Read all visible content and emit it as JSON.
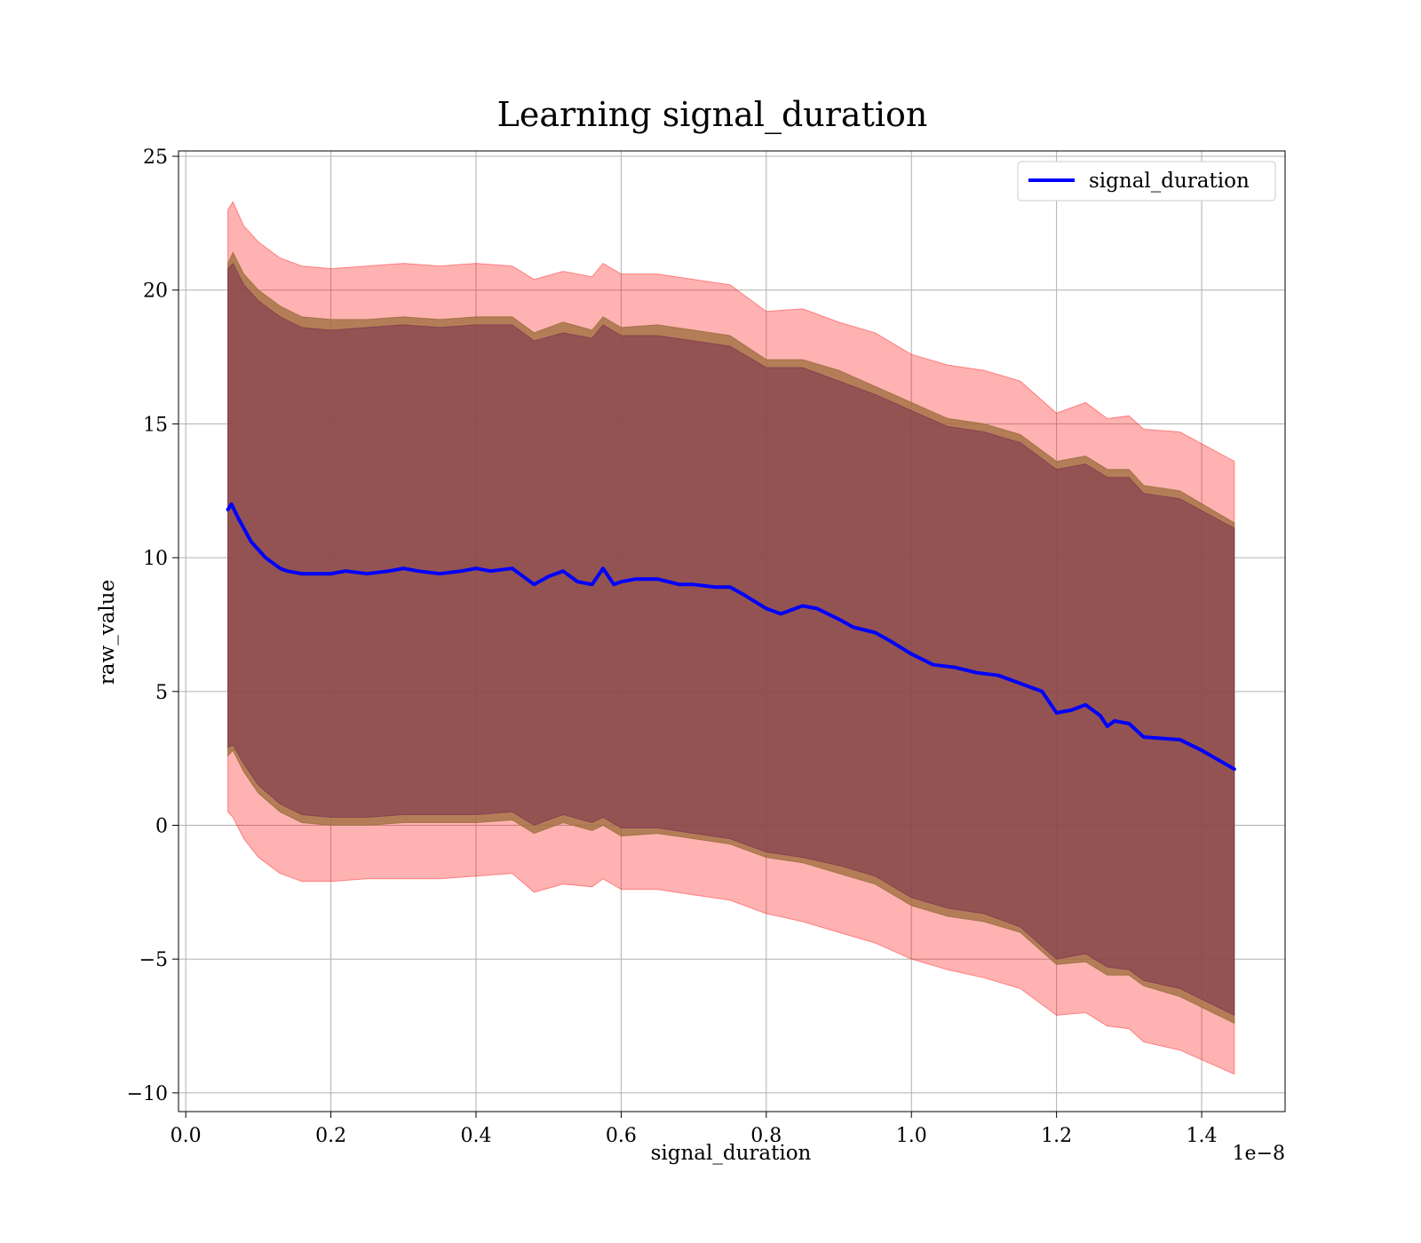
{
  "chart_data": {
    "type": "area",
    "title": "Learning signal_duration",
    "xlabel": "signal_duration",
    "ylabel": "raw_value",
    "x_scale_label": "1e−8",
    "xlim": [
      -0.01,
      1.515
    ],
    "ylim": [
      -10.7,
      25.2
    ],
    "xticks": [
      0.0,
      0.2,
      0.4,
      0.6,
      0.8,
      1.0,
      1.2,
      1.4
    ],
    "xtick_labels": [
      "0.0",
      "0.2",
      "0.4",
      "0.6",
      "0.8",
      "1.0",
      "1.2",
      "1.4"
    ],
    "yticks": [
      -10,
      -5,
      0,
      5,
      10,
      15,
      20,
      25
    ],
    "ytick_labels": [
      "−10",
      "−5",
      "0",
      "5",
      "10",
      "15",
      "20",
      "25"
    ],
    "grid": true,
    "legend": {
      "position": "top-right",
      "entries": [
        "signal_duration"
      ]
    },
    "series": [
      {
        "name": "signal_duration",
        "color": "#0000ff",
        "x": [
          0.058,
          0.063,
          0.07,
          0.08,
          0.09,
          0.1,
          0.11,
          0.12,
          0.13,
          0.14,
          0.16,
          0.18,
          0.2,
          0.22,
          0.25,
          0.28,
          0.3,
          0.32,
          0.35,
          0.38,
          0.4,
          0.42,
          0.45,
          0.47,
          0.48,
          0.5,
          0.52,
          0.54,
          0.56,
          0.575,
          0.59,
          0.6,
          0.62,
          0.65,
          0.68,
          0.7,
          0.73,
          0.75,
          0.77,
          0.8,
          0.82,
          0.85,
          0.87,
          0.9,
          0.92,
          0.95,
          0.97,
          1.0,
          1.03,
          1.06,
          1.09,
          1.12,
          1.15,
          1.18,
          1.2,
          1.22,
          1.24,
          1.26,
          1.27,
          1.28,
          1.3,
          1.32,
          1.37,
          1.4,
          1.445
        ],
        "y": [
          11.8,
          12.0,
          11.6,
          11.1,
          10.6,
          10.3,
          10.0,
          9.8,
          9.6,
          9.5,
          9.4,
          9.4,
          9.4,
          9.5,
          9.4,
          9.5,
          9.6,
          9.5,
          9.4,
          9.5,
          9.6,
          9.5,
          9.6,
          9.2,
          9.0,
          9.3,
          9.5,
          9.1,
          9.0,
          9.6,
          9.0,
          9.1,
          9.2,
          9.2,
          9.0,
          9.0,
          8.9,
          8.9,
          8.6,
          8.1,
          7.9,
          8.2,
          8.1,
          7.7,
          7.4,
          7.2,
          6.9,
          6.4,
          6.0,
          5.9,
          5.7,
          5.6,
          5.3,
          5.0,
          4.2,
          4.3,
          4.5,
          4.1,
          3.7,
          3.9,
          3.8,
          3.3,
          3.2,
          2.8,
          2.1
        ]
      }
    ],
    "bands": [
      {
        "role": "outer",
        "color": "#ff0000",
        "opacity": 0.3,
        "x": [
          0.058,
          0.065,
          0.08,
          0.1,
          0.13,
          0.16,
          0.2,
          0.25,
          0.3,
          0.35,
          0.4,
          0.45,
          0.48,
          0.52,
          0.56,
          0.575,
          0.6,
          0.65,
          0.7,
          0.75,
          0.8,
          0.85,
          0.9,
          0.95,
          1.0,
          1.05,
          1.1,
          1.15,
          1.2,
          1.24,
          1.27,
          1.3,
          1.32,
          1.37,
          1.445
        ],
        "upper": [
          23.0,
          23.3,
          22.4,
          21.8,
          21.2,
          20.9,
          20.8,
          20.9,
          21.0,
          20.9,
          21.0,
          20.9,
          20.4,
          20.7,
          20.5,
          21.0,
          20.6,
          20.6,
          20.4,
          20.2,
          19.2,
          19.3,
          18.8,
          18.4,
          17.6,
          17.2,
          17.0,
          16.6,
          15.4,
          15.8,
          15.2,
          15.3,
          14.8,
          14.7,
          13.6
        ],
        "lower": [
          0.5,
          0.3,
          -0.5,
          -1.2,
          -1.8,
          -2.1,
          -2.1,
          -2.0,
          -2.0,
          -2.0,
          -1.9,
          -1.8,
          -2.5,
          -2.2,
          -2.3,
          -2.0,
          -2.4,
          -2.4,
          -2.6,
          -2.8,
          -3.3,
          -3.6,
          -4.0,
          -4.4,
          -5.0,
          -5.4,
          -5.7,
          -6.1,
          -7.1,
          -7.0,
          -7.5,
          -7.6,
          -8.1,
          -8.4,
          -9.3
        ]
      },
      {
        "role": "middle",
        "color": "#a07040",
        "opacity": 0.8,
        "x": [
          0.058,
          0.065,
          0.08,
          0.1,
          0.13,
          0.16,
          0.2,
          0.25,
          0.3,
          0.35,
          0.4,
          0.45,
          0.48,
          0.52,
          0.56,
          0.575,
          0.6,
          0.65,
          0.7,
          0.75,
          0.8,
          0.85,
          0.9,
          0.95,
          1.0,
          1.05,
          1.1,
          1.15,
          1.2,
          1.24,
          1.27,
          1.3,
          1.32,
          1.37,
          1.445
        ],
        "upper": [
          21.0,
          21.4,
          20.6,
          20.0,
          19.4,
          19.0,
          18.9,
          18.9,
          19.0,
          18.9,
          19.0,
          19.0,
          18.4,
          18.8,
          18.5,
          19.0,
          18.6,
          18.7,
          18.5,
          18.3,
          17.4,
          17.4,
          17.0,
          16.4,
          15.8,
          15.2,
          15.0,
          14.6,
          13.6,
          13.8,
          13.3,
          13.3,
          12.7,
          12.5,
          11.3
        ],
        "lower": [
          2.6,
          2.8,
          2.0,
          1.2,
          0.5,
          0.1,
          0.0,
          0.0,
          0.1,
          0.1,
          0.1,
          0.2,
          -0.3,
          0.1,
          -0.2,
          0.0,
          -0.4,
          -0.3,
          -0.5,
          -0.7,
          -1.2,
          -1.4,
          -1.8,
          -2.2,
          -3.0,
          -3.4,
          -3.6,
          -4.0,
          -5.2,
          -5.1,
          -5.6,
          -5.6,
          -6.0,
          -6.4,
          -7.4
        ]
      },
      {
        "role": "inner",
        "color": "#7a3050",
        "opacity": 0.55,
        "x": [
          0.058,
          0.065,
          0.08,
          0.1,
          0.13,
          0.16,
          0.2,
          0.25,
          0.3,
          0.35,
          0.4,
          0.45,
          0.48,
          0.52,
          0.56,
          0.575,
          0.6,
          0.65,
          0.7,
          0.75,
          0.8,
          0.85,
          0.9,
          0.95,
          1.0,
          1.05,
          1.1,
          1.15,
          1.2,
          1.24,
          1.27,
          1.3,
          1.32,
          1.37,
          1.445
        ],
        "upper": [
          20.8,
          21.0,
          20.2,
          19.6,
          19.0,
          18.6,
          18.5,
          18.6,
          18.7,
          18.6,
          18.7,
          18.7,
          18.1,
          18.4,
          18.2,
          18.7,
          18.3,
          18.3,
          18.1,
          17.9,
          17.1,
          17.1,
          16.6,
          16.1,
          15.5,
          14.9,
          14.7,
          14.3,
          13.3,
          13.5,
          13.0,
          13.0,
          12.4,
          12.2,
          11.1
        ],
        "lower": [
          2.9,
          3.0,
          2.3,
          1.5,
          0.8,
          0.4,
          0.3,
          0.3,
          0.4,
          0.4,
          0.4,
          0.5,
          0.0,
          0.4,
          0.1,
          0.3,
          -0.1,
          -0.1,
          -0.3,
          -0.5,
          -1.0,
          -1.2,
          -1.5,
          -1.9,
          -2.7,
          -3.1,
          -3.3,
          -3.8,
          -5.0,
          -4.8,
          -5.3,
          -5.4,
          -5.8,
          -6.1,
          -7.1
        ]
      }
    ]
  }
}
